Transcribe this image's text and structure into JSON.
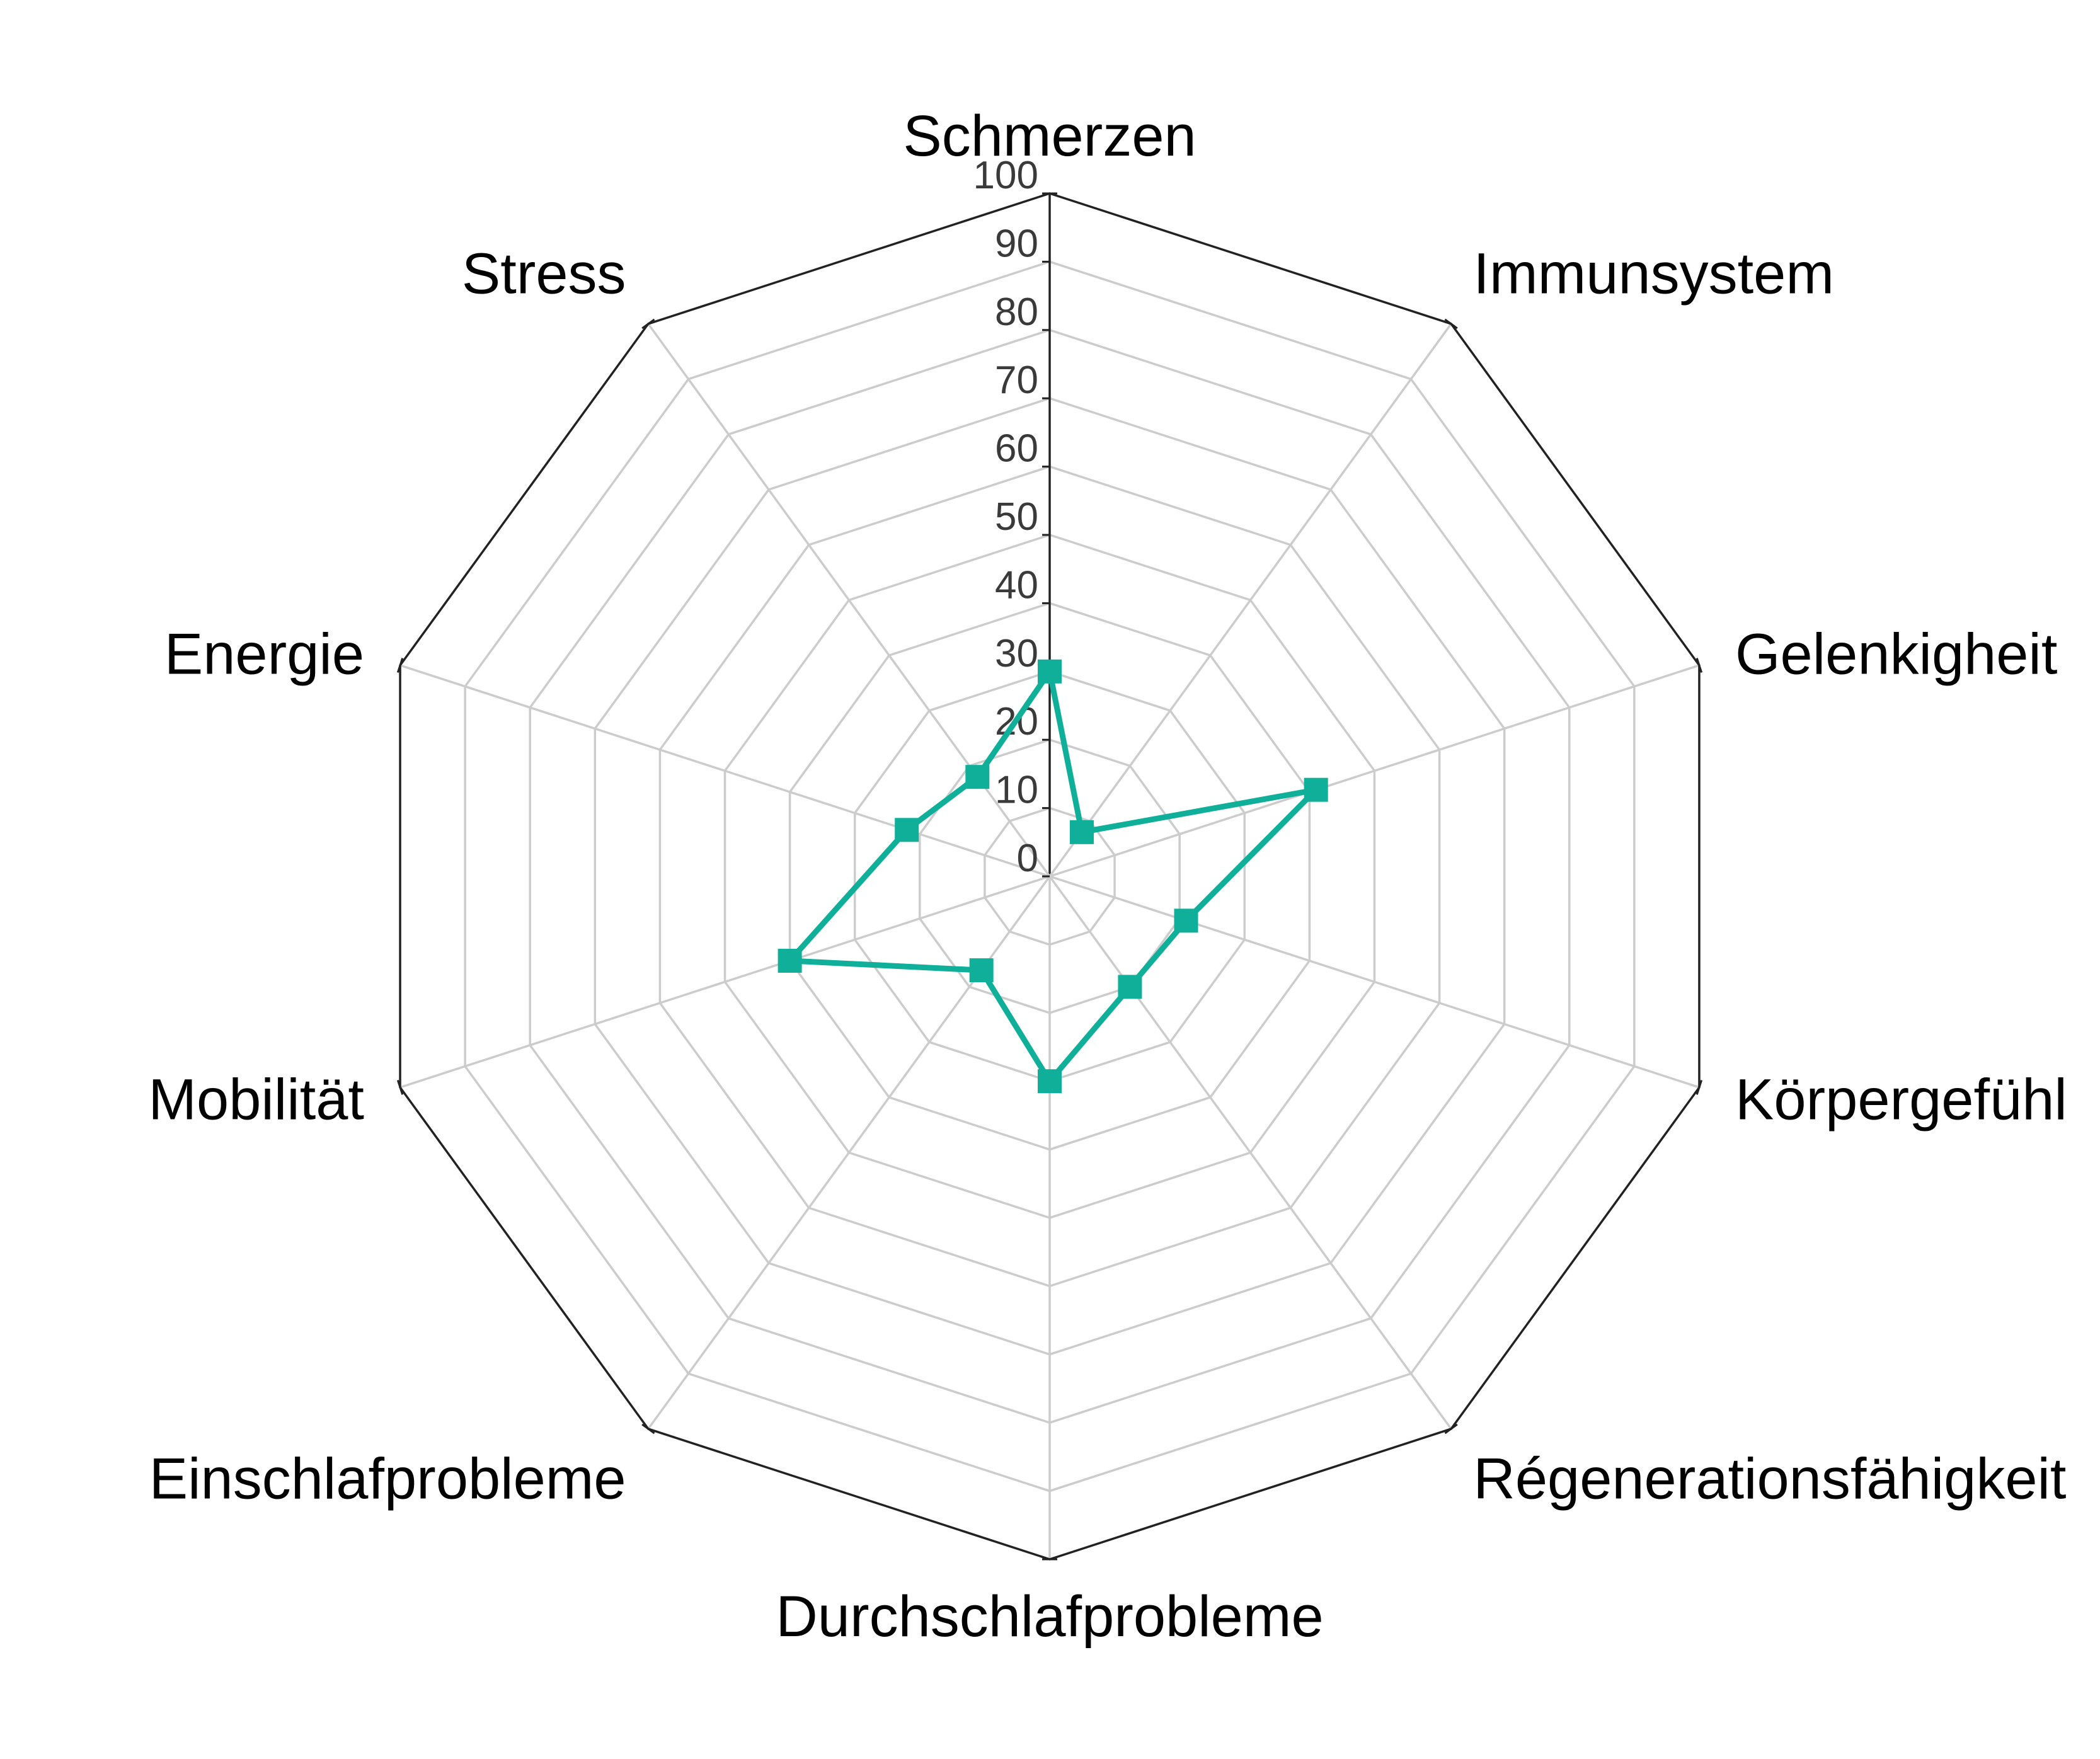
{
  "chart_data": {
    "type": "radar",
    "axes": [
      "Schmerzen",
      "Immunsystem",
      "Gelenkigheit",
      "Körpergefühl",
      "Régenerationsfähigkeit",
      "Durchschlafprobleme",
      "Einschlafprobleme",
      "Mobilität",
      "Energie",
      "Stress"
    ],
    "values": [
      30,
      8,
      41,
      21,
      20,
      30,
      17,
      40,
      22,
      18
    ],
    "r_ticks": [
      "0",
      "10",
      "20",
      "30",
      "40",
      "50",
      "60",
      "70",
      "80",
      "90",
      "100"
    ],
    "rlim": [
      0,
      100
    ],
    "grid": true,
    "legend": "none",
    "line_color": "#0faf9a",
    "grid_color": "#cccccc",
    "frame_color": "#222222"
  }
}
